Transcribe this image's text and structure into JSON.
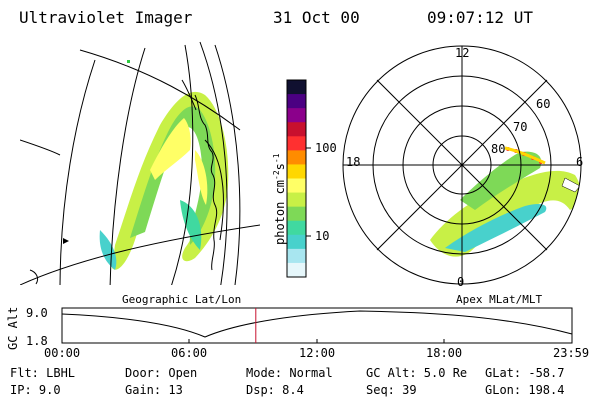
{
  "header": {
    "title": "Ultraviolet Imager",
    "date": "31 Oct 00",
    "time": "09:07:12 UT"
  },
  "colorbar": {
    "unit_label": "photon cm",
    "unit_sup1": "-2",
    "unit_s": "s",
    "unit_sup2": "-1",
    "ticks": [
      "100",
      "10"
    ],
    "colors": [
      "#101030",
      "#4b0082",
      "#8b008b",
      "#c8102e",
      "#ff3030",
      "#ff8c00",
      "#ffd700",
      "#ffff66",
      "#c8f046",
      "#7ed957",
      "#40d9a0",
      "#48d1cc",
      "#a8e6f0",
      "#e6f7fb"
    ]
  },
  "left_map": {
    "caption": "Geographic Lat/Lon"
  },
  "polar_plot": {
    "caption": "Apex MLat/MLT",
    "hour_labels": {
      "top": "12",
      "left": "18",
      "right": "6",
      "bottom": "0"
    },
    "lat_labels": [
      "60",
      "70",
      "80"
    ]
  },
  "altitude_strip": {
    "ylabel": "GC Alt",
    "yticks": [
      "9.0",
      "1.8"
    ],
    "xticks": [
      "00:00",
      "06:00",
      "12:00",
      "18:00",
      "23:59"
    ],
    "current_time_fraction": 0.38
  },
  "footer": {
    "flt": "Flt: LBHL",
    "ip": "IP:  9.0",
    "door": "Door: Open",
    "gain": "Gain: 13",
    "mode": "Mode: Normal",
    "dsp": "Dsp:     8.4",
    "gcalt": "GC Alt: 5.0 Re",
    "seq": "Seq: 39",
    "glat": "GLat: -58.7",
    "glon": "GLon: 198.4"
  }
}
